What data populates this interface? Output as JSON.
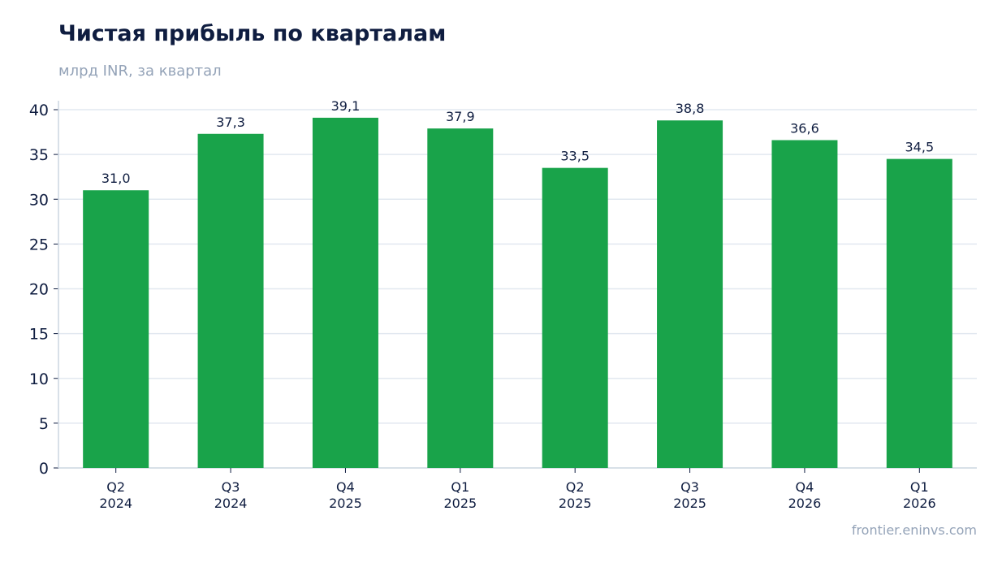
{
  "title": "Чистая прибыль по кварталам",
  "subtitle": "млрд INR, за квартал",
  "source": "frontier.eninvs.com",
  "colors": {
    "bar": "#19a34a",
    "grid": "#e2e8f0",
    "axis": "#cbd5e1",
    "text": "#0f1d40",
    "muted": "#94a3b8"
  },
  "chart_data": {
    "type": "bar",
    "title": "Чистая прибыль по кварталам",
    "subtitle": "млрд INR, за квартал",
    "categories": [
      [
        "Q2",
        "2024"
      ],
      [
        "Q3",
        "2024"
      ],
      [
        "Q4",
        "2025"
      ],
      [
        "Q1",
        "2025"
      ],
      [
        "Q2",
        "2025"
      ],
      [
        "Q3",
        "2025"
      ],
      [
        "Q4",
        "2026"
      ],
      [
        "Q1",
        "2026"
      ]
    ],
    "values": [
      31.0,
      37.3,
      39.1,
      37.9,
      33.5,
      38.8,
      36.6,
      34.5
    ],
    "data_labels": [
      "31,0",
      "37,3",
      "39,1",
      "37,9",
      "33,5",
      "38,8",
      "36,6",
      "34,5"
    ],
    "ylim": [
      0,
      40
    ],
    "yticks": [
      0,
      5,
      10,
      15,
      20,
      25,
      30,
      35,
      40
    ],
    "grid": true,
    "legend": false
  }
}
